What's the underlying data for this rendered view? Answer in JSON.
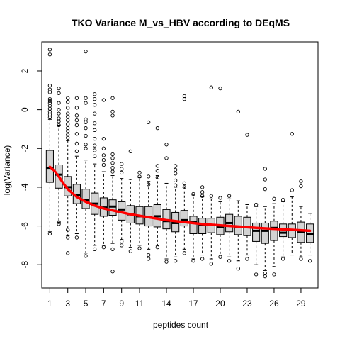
{
  "chart_data": {
    "type": "boxplot",
    "title": "TKO Variance M_vs_HBV according to DEqMS",
    "xlabel": "peptides count",
    "ylabel": "log(Variance)",
    "x_categories": [
      1,
      2,
      3,
      4,
      5,
      6,
      7,
      8,
      9,
      10,
      11,
      12,
      13,
      14,
      15,
      16,
      17,
      18,
      19,
      20,
      21,
      22,
      23,
      24,
      25,
      26,
      27,
      28,
      29,
      30
    ],
    "x_tick_labels": [
      "1",
      "3",
      "5",
      "7",
      "9",
      "11",
      "14",
      "17",
      "20",
      "23",
      "26",
      "29"
    ],
    "x_tick_positions": [
      1,
      3,
      5,
      7,
      9,
      11,
      14,
      17,
      20,
      23,
      26,
      29
    ],
    "y_ticks": [
      -8,
      -6,
      -4,
      -2,
      0,
      2
    ],
    "xlim": [
      0.1,
      30.9
    ],
    "ylim": [
      -9.2,
      3.5
    ],
    "box_fill": "#d3d3d3",
    "trend_color": "#ff0000",
    "boxes": [
      {
        "x": 1,
        "q1": -3.75,
        "median": -3.0,
        "q3": -2.1,
        "wlo": -6.3,
        "whi": -0.5,
        "outliers": [
          3.1,
          2.85,
          1.25,
          1.05,
          0.9,
          0.55,
          0.45,
          0.35,
          0.2,
          0.05,
          -0.1,
          -0.25,
          -0.4,
          -6.4
        ]
      },
      {
        "x": 2,
        "q1": -4.05,
        "median": -3.35,
        "q3": -2.85,
        "wlo": -5.8,
        "whi": -0.8,
        "outliers": [
          1.1,
          0.85,
          0.35,
          0.0,
          -0.2,
          -0.45,
          -0.6,
          -0.8,
          -5.8,
          -5.9
        ]
      },
      {
        "x": 3,
        "q1": -4.45,
        "median": -4.0,
        "q3": -3.45,
        "wlo": -6.5,
        "whi": -1.6,
        "outliers": [
          0.6,
          0.4,
          0.1,
          -0.2,
          -0.35,
          -0.55,
          -0.75,
          -0.95,
          -1.1,
          -1.3,
          -1.45,
          -6.2,
          -6.6,
          -7.4
        ]
      },
      {
        "x": 4,
        "q1": -4.85,
        "median": -4.4,
        "q3": -3.85,
        "wlo": -6.4,
        "whi": -2.4,
        "outliers": [
          0.6,
          0.1,
          -0.3,
          -0.55,
          -0.8,
          -1.25,
          -1.75,
          -2.15,
          -6.6
        ]
      },
      {
        "x": 5,
        "q1": -5.1,
        "median": -4.65,
        "q3": -4.1,
        "wlo": -7.4,
        "whi": -2.6,
        "outliers": [
          3.0,
          0.6,
          0.35,
          -0.5,
          -0.65,
          -0.95,
          -1.35,
          -1.8,
          -2.0,
          -7.55
        ]
      },
      {
        "x": 6,
        "q1": -5.4,
        "median": -4.85,
        "q3": -4.3,
        "wlo": -7.0,
        "whi": -2.8,
        "outliers": [
          0.8,
          0.55,
          0.25,
          -0.2,
          -0.7,
          -1.05,
          -1.5,
          -1.85,
          -2.1,
          -2.4,
          -7.2
        ]
      },
      {
        "x": 7,
        "q1": -5.5,
        "median": -5.05,
        "q3": -4.55,
        "wlo": -7.0,
        "whi": -3.2,
        "outliers": [
          0.5,
          -1.5,
          -2.0,
          -2.35,
          -2.6,
          -2.85,
          -7.1
        ]
      },
      {
        "x": 8,
        "q1": -5.45,
        "median": -5.0,
        "q3": -4.65,
        "wlo": -6.9,
        "whi": -3.4,
        "outliers": [
          0.6,
          -0.1,
          -0.3,
          -2.3,
          -2.5,
          -2.75,
          -3.0,
          -3.2,
          -7.2,
          -8.35
        ]
      },
      {
        "x": 9,
        "q1": -5.7,
        "median": -5.15,
        "q3": -4.75,
        "wlo": -6.7,
        "whi": -3.55,
        "outliers": [
          -2.8,
          -3.05,
          -3.25,
          -6.8,
          -7.0
        ]
      },
      {
        "x": 10,
        "q1": -5.85,
        "median": -5.4,
        "q3": -4.95,
        "wlo": -7.1,
        "whi": -3.6,
        "outliers": [
          -2.15,
          -7.3
        ]
      },
      {
        "x": 11,
        "q1": -5.9,
        "median": -5.5,
        "q3": -5.0,
        "wlo": -7.0,
        "whi": -3.5,
        "outliers": [
          -3.25,
          -3.45,
          -7.15
        ]
      },
      {
        "x": 12,
        "q1": -6.0,
        "median": -5.55,
        "q3": -5.0,
        "wlo": -7.2,
        "whi": -3.7,
        "outliers": [
          -0.65,
          -3.45,
          -3.85,
          -7.5,
          -7.7
        ]
      },
      {
        "x": 13,
        "q1": -6.05,
        "median": -5.5,
        "q3": -4.9,
        "wlo": -7.0,
        "whi": -3.4,
        "outliers": [
          -0.95,
          -2.9,
          -3.15,
          -3.5,
          -7.1
        ]
      },
      {
        "x": 14,
        "q1": -6.15,
        "median": -5.75,
        "q3": -5.15,
        "wlo": -7.7,
        "whi": -3.8,
        "outliers": [
          -1.8,
          -2.5,
          -7.85
        ]
      },
      {
        "x": 15,
        "q1": -6.3,
        "median": -5.85,
        "q3": -5.3,
        "wlo": -7.6,
        "whi": -4.0,
        "outliers": [
          -2.9,
          -3.1,
          -3.3,
          -3.65,
          -3.9,
          -7.8
        ]
      },
      {
        "x": 16,
        "q1": -6.0,
        "median": -5.7,
        "q3": -5.2,
        "wlo": -7.2,
        "whi": -4.0,
        "outliers": [
          0.7,
          0.55,
          -3.8,
          -4.0,
          -7.4
        ]
      },
      {
        "x": 17,
        "q1": -6.4,
        "median": -5.8,
        "q3": -5.5,
        "wlo": -7.7,
        "whi": -4.4,
        "outliers": [
          -4.35,
          -7.8
        ]
      },
      {
        "x": 18,
        "q1": -6.4,
        "median": -5.95,
        "q3": -5.6,
        "wlo": -7.5,
        "whi": -4.5,
        "outliers": [
          -4.0,
          -4.25,
          -4.45,
          -7.7
        ]
      },
      {
        "x": 19,
        "q1": -6.35,
        "median": -5.95,
        "q3": -5.6,
        "wlo": -7.7,
        "whi": -4.6,
        "outliers": [
          1.15,
          -4.45,
          -7.95
        ]
      },
      {
        "x": 20,
        "q1": -6.45,
        "median": -6.05,
        "q3": -5.55,
        "wlo": -7.5,
        "whi": -4.75,
        "outliers": [
          1.1,
          -4.55,
          -7.6
        ]
      },
      {
        "x": 21,
        "q1": -6.3,
        "median": -5.85,
        "q3": -5.4,
        "wlo": -7.6,
        "whi": -4.6,
        "outliers": [
          -4.45,
          -7.8
        ]
      },
      {
        "x": 22,
        "q1": -6.45,
        "median": -6.05,
        "q3": -5.5,
        "wlo": -7.8,
        "whi": -4.7,
        "outliers": [
          -0.1,
          -8.2
        ]
      },
      {
        "x": 23,
        "q1": -6.5,
        "median": -6.05,
        "q3": -5.55,
        "wlo": -7.5,
        "whi": -4.9,
        "outliers": [
          -1.3,
          -7.7
        ]
      },
      {
        "x": 24,
        "q1": -6.8,
        "median": -6.25,
        "q3": -5.85,
        "wlo": -8.0,
        "whi": -5.0,
        "outliers": [
          -4.9,
          -8.5
        ]
      },
      {
        "x": 25,
        "q1": -6.9,
        "median": -6.25,
        "q3": -5.85,
        "wlo": -8.3,
        "whi": -5.0,
        "outliers": [
          -3.05,
          -3.6,
          -4.1,
          -8.45,
          -8.6
        ]
      },
      {
        "x": 26,
        "q1": -6.75,
        "median": -6.1,
        "q3": -5.75,
        "wlo": -8.1,
        "whi": -4.85,
        "outliers": [
          -4.6,
          -8.5
        ]
      },
      {
        "x": 27,
        "q1": -6.55,
        "median": -6.35,
        "q3": -5.9,
        "wlo": -7.6,
        "whi": -4.75,
        "outliers": [
          -4.65,
          -7.7
        ]
      },
      {
        "x": 28,
        "q1": -6.6,
        "median": -6.2,
        "q3": -5.9,
        "wlo": -7.5,
        "whi": -4.5,
        "outliers": [
          -1.25,
          -4.15
        ]
      },
      {
        "x": 29,
        "q1": -6.85,
        "median": -6.3,
        "q3": -5.8,
        "wlo": -7.6,
        "whi": -5.0,
        "outliers": [
          -3.7,
          -3.95,
          -7.7
        ]
      },
      {
        "x": 30,
        "q1": -6.85,
        "median": -6.4,
        "q3": -5.9,
        "wlo": -7.5,
        "whi": -5.35,
        "outliers": [
          -7.8
        ]
      }
    ],
    "trend_line": {
      "x": [
        1,
        1.5,
        2,
        2.5,
        3,
        4,
        5,
        6,
        7,
        8,
        9,
        10,
        12,
        14,
        16,
        18,
        20,
        22,
        24,
        26,
        28,
        30
      ],
      "y": [
        -2.95,
        -3.15,
        -3.45,
        -3.8,
        -4.1,
        -4.5,
        -4.75,
        -4.95,
        -5.1,
        -5.2,
        -5.3,
        -5.4,
        -5.55,
        -5.7,
        -5.8,
        -5.9,
        -5.97,
        -6.03,
        -6.1,
        -6.15,
        -6.2,
        -6.25
      ]
    }
  }
}
